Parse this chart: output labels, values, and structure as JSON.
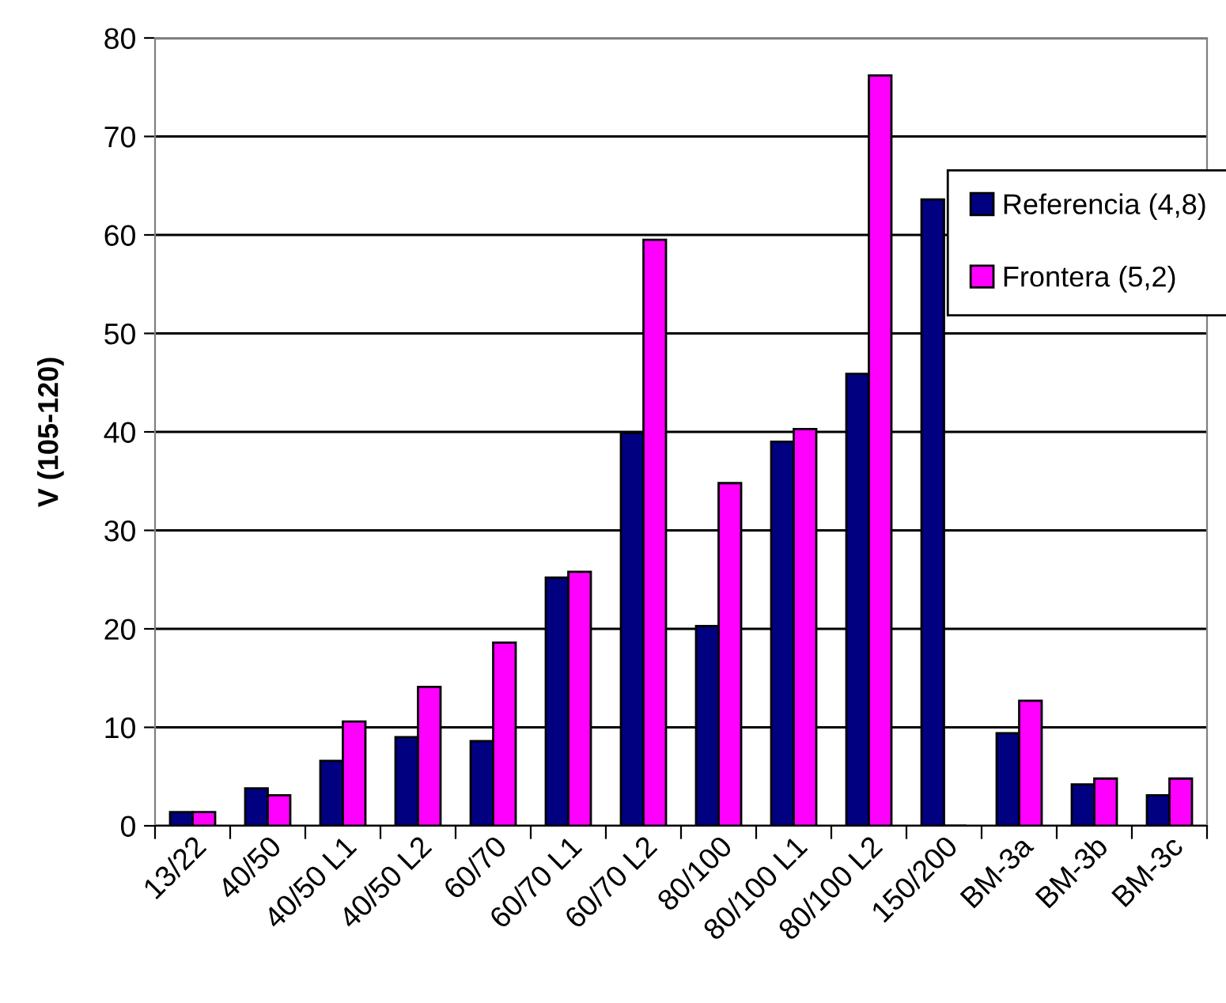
{
  "chart_data": {
    "type": "bar",
    "ylabel": "V (105-120)",
    "categories": [
      "13/22",
      "40/50",
      "40/50 L1",
      "40/50 L2",
      "60/70",
      "60/70 L1",
      "60/70 L2",
      "80/100",
      "80/100 L1",
      "80/100 L2",
      "150/200",
      "BM-3a",
      "BM-3b",
      "BM-3c"
    ],
    "series": [
      {
        "name": "Referencia (4,8)",
        "color": "#000080",
        "values": [
          1.4,
          3.8,
          6.6,
          9.0,
          8.6,
          25.2,
          39.9,
          20.3,
          39.0,
          45.9,
          63.6,
          9.4,
          4.2,
          3.1
        ]
      },
      {
        "name": "Frontera (5,2)",
        "color": "#ff00ff",
        "values": [
          1.4,
          3.1,
          10.6,
          14.1,
          18.6,
          25.8,
          59.5,
          34.8,
          40.3,
          76.2,
          null,
          12.7,
          4.8,
          4.8
        ]
      }
    ],
    "ylim": [
      0,
      80
    ],
    "yticks": [
      0,
      10,
      20,
      30,
      40,
      50,
      60,
      70,
      80
    ],
    "grid": "y",
    "legend": "right"
  }
}
